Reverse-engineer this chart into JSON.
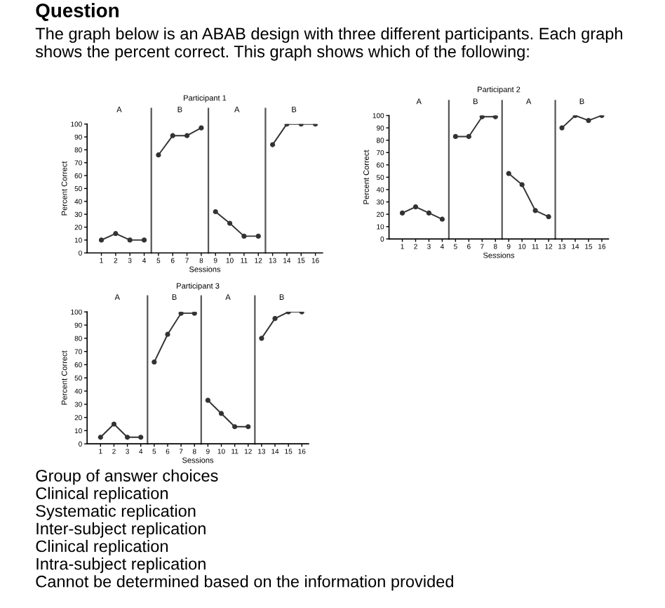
{
  "chart_data": [
    {
      "type": "other",
      "annotations": [
        "Question",
        "The graph below is an ABAB design with three different participants. Each graph shows the percent correct. This graph shows which of the following:"
      ]
    },
    {
      "type": "line",
      "title": "Participant 1",
      "xlabel": "Sessions",
      "ylabel": "Percent Correct",
      "x": [
        1,
        2,
        3,
        4,
        5,
        6,
        7,
        8,
        9,
        10,
        11,
        12,
        13,
        14,
        15,
        16
      ],
      "xlim": [
        0,
        16.5
      ],
      "xticks": [
        1,
        2,
        3,
        4,
        5,
        6,
        7,
        8,
        9,
        10,
        11,
        12,
        13,
        14,
        15,
        16
      ],
      "ylim": [
        0,
        100
      ],
      "yticks": [
        0,
        10,
        20,
        30,
        40,
        50,
        60,
        70,
        80,
        90,
        100
      ],
      "marker": "circle",
      "line_style": "solid",
      "grid": false,
      "legend": false,
      "series": [
        {
          "color": "#333333",
          "values": [
            10,
            15,
            10,
            10,
            null,
            null,
            null,
            null,
            null,
            null,
            null,
            null,
            null,
            null,
            null,
            null
          ]
        },
        {
          "color": "#333333",
          "values": [
            null,
            null,
            null,
            null,
            76,
            91,
            91,
            97,
            null,
            null,
            null,
            null,
            null,
            null,
            null,
            null
          ]
        },
        {
          "color": "#333333",
          "values": [
            null,
            null,
            null,
            null,
            null,
            null,
            null,
            null,
            32,
            23,
            13,
            13,
            null,
            null,
            null,
            null
          ]
        },
        {
          "color": "#333333",
          "values": [
            null,
            null,
            null,
            null,
            null,
            null,
            null,
            null,
            null,
            null,
            null,
            null,
            84,
            100,
            100,
            100
          ]
        }
      ],
      "ref_lines": [
        {
          "axis": "x",
          "value": 4.5,
          "color": "#555555"
        },
        {
          "axis": "x",
          "value": 8.5,
          "color": "#555555"
        },
        {
          "axis": "x",
          "value": 12.5,
          "color": "#555555"
        }
      ],
      "annotations": [
        "A",
        "B",
        "A",
        "B"
      ]
    },
    {
      "type": "line",
      "title": "Participant 2",
      "xlabel": "Sessions",
      "ylabel": "Percent Correct",
      "x": [
        1,
        2,
        3,
        4,
        5,
        6,
        7,
        8,
        9,
        10,
        11,
        12,
        13,
        14,
        15,
        16
      ],
      "xlim": [
        0,
        16.5
      ],
      "xticks": [
        1,
        2,
        3,
        4,
        5,
        6,
        7,
        8,
        9,
        10,
        11,
        12,
        13,
        14,
        15,
        16
      ],
      "ylim": [
        0,
        100
      ],
      "yticks": [
        0,
        10,
        20,
        30,
        40,
        50,
        60,
        70,
        80,
        90,
        100
      ],
      "marker": "circle",
      "line_style": "solid",
      "grid": false,
      "legend": false,
      "series": [
        {
          "color": "#333333",
          "values": [
            21,
            26,
            21,
            16,
            null,
            null,
            null,
            null,
            null,
            null,
            null,
            null,
            null,
            null,
            null,
            null
          ]
        },
        {
          "color": "#333333",
          "values": [
            null,
            null,
            null,
            null,
            83,
            83,
            99,
            99,
            null,
            null,
            null,
            null,
            null,
            null,
            null,
            null
          ]
        },
        {
          "color": "#333333",
          "values": [
            null,
            null,
            null,
            null,
            null,
            null,
            null,
            null,
            53,
            44,
            23,
            18,
            null,
            null,
            null,
            null
          ]
        },
        {
          "color": "#333333",
          "values": [
            null,
            null,
            null,
            null,
            null,
            null,
            null,
            null,
            null,
            null,
            null,
            null,
            90,
            100,
            96,
            100
          ]
        }
      ],
      "ref_lines": [
        {
          "axis": "x",
          "value": 4.5,
          "color": "#555555"
        },
        {
          "axis": "x",
          "value": 8.5,
          "color": "#555555"
        },
        {
          "axis": "x",
          "value": 12.5,
          "color": "#555555"
        }
      ],
      "annotations": [
        "A",
        "B",
        "A",
        "B"
      ]
    },
    {
      "type": "line",
      "title": "Participant 3",
      "xlabel": "Sessions",
      "ylabel": "Percent Correct",
      "x": [
        1,
        2,
        3,
        4,
        5,
        6,
        7,
        8,
        9,
        10,
        11,
        12,
        13,
        14,
        15,
        16
      ],
      "xlim": [
        0,
        16.5
      ],
      "xticks": [
        1,
        2,
        3,
        4,
        5,
        6,
        7,
        8,
        9,
        10,
        11,
        12,
        13,
        14,
        15,
        16
      ],
      "ylim": [
        0,
        100
      ],
      "yticks": [
        0,
        10,
        20,
        30,
        40,
        50,
        60,
        70,
        80,
        90,
        100
      ],
      "marker": "circle",
      "line_style": "solid",
      "grid": false,
      "legend": false,
      "series": [
        {
          "color": "#333333",
          "values": [
            5,
            15,
            5,
            5,
            null,
            null,
            null,
            null,
            null,
            null,
            null,
            null,
            null,
            null,
            null,
            null
          ]
        },
        {
          "color": "#333333",
          "values": [
            null,
            null,
            null,
            null,
            62,
            83,
            99,
            99,
            null,
            null,
            null,
            null,
            null,
            null,
            null,
            null
          ]
        },
        {
          "color": "#333333",
          "values": [
            null,
            null,
            null,
            null,
            null,
            null,
            null,
            null,
            33,
            23,
            13,
            13,
            null,
            null,
            null,
            null
          ]
        },
        {
          "color": "#333333",
          "values": [
            null,
            null,
            null,
            null,
            null,
            null,
            null,
            null,
            null,
            null,
            null,
            null,
            80,
            95,
            100,
            100
          ]
        }
      ],
      "ref_lines": [
        {
          "axis": "x",
          "value": 4.5,
          "color": "#555555"
        },
        {
          "axis": "x",
          "value": 8.5,
          "color": "#555555"
        },
        {
          "axis": "x",
          "value": 12.5,
          "color": "#555555"
        }
      ],
      "annotations": [
        "A",
        "B",
        "A",
        "B"
      ]
    },
    {
      "type": "other",
      "annotations": [
        "Group of answer choices",
        "Clinical replication",
        "Systematic replication",
        "Inter-subject replication",
        "Clinical replication",
        "Intra-subject replication",
        "Cannot be determined based on the information provided"
      ]
    }
  ]
}
